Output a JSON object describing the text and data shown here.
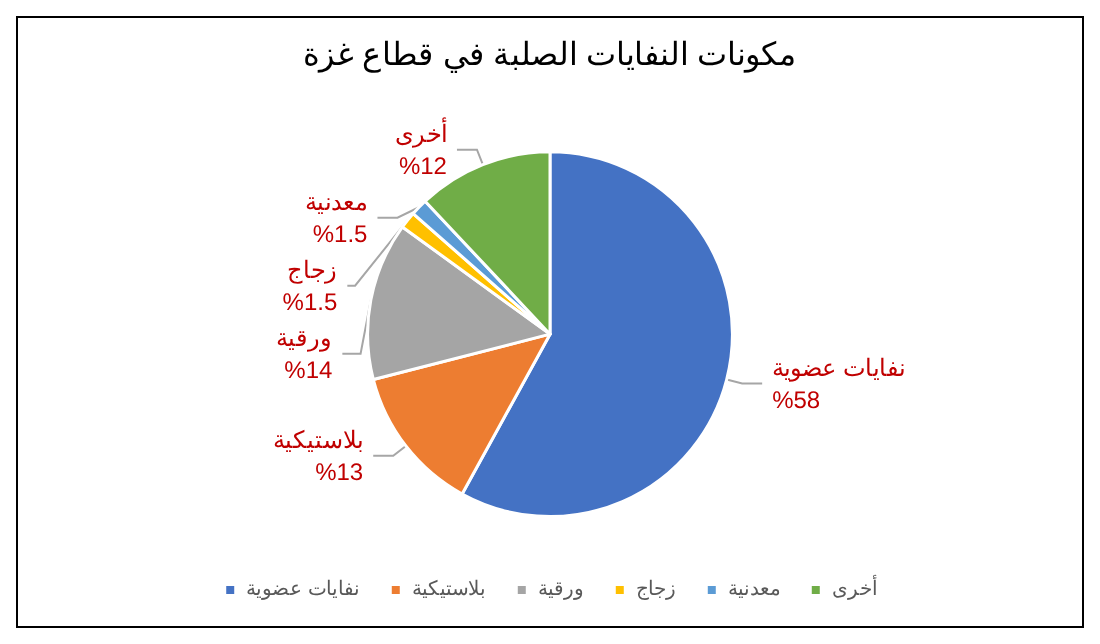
{
  "chart_data": {
    "type": "pie",
    "title": "مكونات النفايات الصلبة في قطاع غزة",
    "categories": [
      "نفايات عضوية",
      "بلاستيكية",
      "ورقية",
      "زجاج",
      "معدنية",
      "أخرى"
    ],
    "values": [
      58,
      13,
      14,
      1.5,
      1.5,
      12
    ],
    "value_labels": [
      "%58",
      "%13",
      "%14",
      "%1.5",
      "%1.5",
      "%12"
    ],
    "colors": [
      "#4472c4",
      "#ed7d31",
      "#a5a5a5",
      "#ffc000",
      "#5b9bd5",
      "#70ad47"
    ],
    "legend": "bottom"
  }
}
